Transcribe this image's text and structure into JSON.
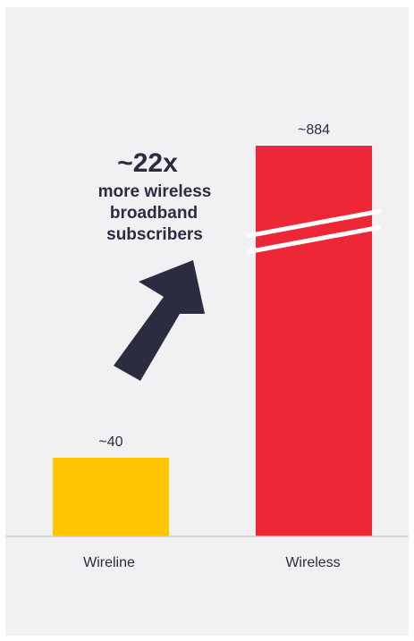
{
  "chart_data": {
    "type": "bar",
    "categories": [
      "Wireline",
      "Wireless"
    ],
    "values": [
      40,
      884
    ],
    "value_labels": [
      "~40",
      "~884"
    ],
    "axis_break": "Wireless bar",
    "colors": [
      "#FFC600",
      "#EE2737"
    ],
    "annotation": {
      "headline": "~22x",
      "lines": [
        "more wireless",
        "broadband",
        "subscribers"
      ],
      "color": "#2B2C3F"
    },
    "baseline_color": "#C8C8D2"
  }
}
